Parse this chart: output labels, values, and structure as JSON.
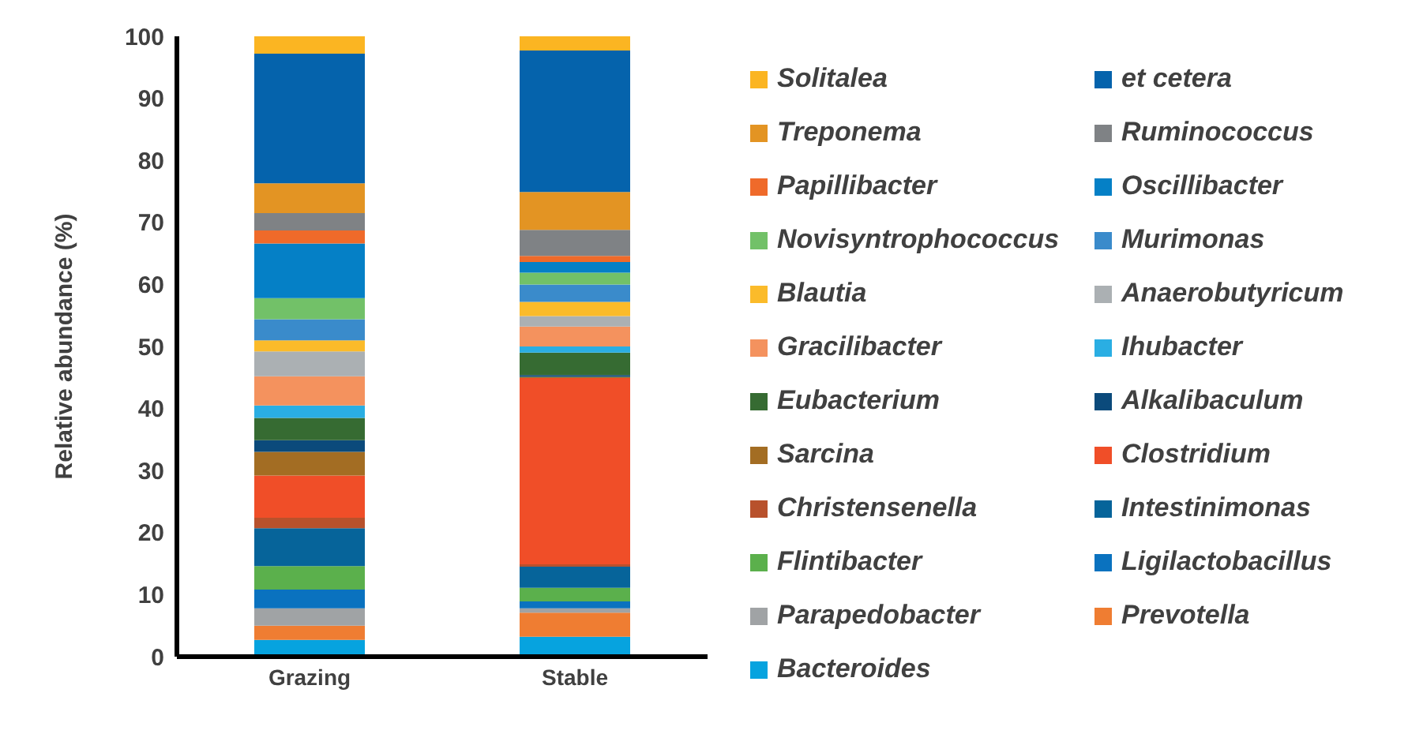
{
  "chart_data": {
    "type": "bar",
    "stacked": true,
    "ylabel": "Relative abundance (%)",
    "categories": [
      "Grazing",
      "Stable"
    ],
    "ylim": [
      0,
      100
    ],
    "yticks": [
      0,
      10,
      20,
      30,
      40,
      50,
      60,
      70,
      80,
      90,
      100
    ],
    "grid": false,
    "legend": "right",
    "series": [
      {
        "name": "Bacteroides",
        "color": "#06a3df",
        "values": [
          2.7,
          3.2
        ]
      },
      {
        "name": "Prevotella",
        "color": "#ef7d32",
        "values": [
          2.3,
          3.9
        ]
      },
      {
        "name": "Parapedobacter",
        "color": "#a0a3a5",
        "values": [
          2.8,
          0.7
        ]
      },
      {
        "name": "Ligilactobacillus",
        "color": "#0a72bf",
        "values": [
          3.0,
          1.1
        ]
      },
      {
        "name": "Flintibacter",
        "color": "#5bb04c",
        "values": [
          3.8,
          2.2
        ]
      },
      {
        "name": "Intestinimonas",
        "color": "#06649a",
        "values": [
          6.1,
          3.4
        ]
      },
      {
        "name": "Christensenella",
        "color": "#b8512c",
        "values": [
          1.7,
          0.4
        ]
      },
      {
        "name": "Clostridium",
        "color": "#f04e28",
        "values": [
          6.8,
          30.0
        ]
      },
      {
        "name": "Sarcina",
        "color": "#a36d23",
        "values": [
          3.8,
          0.2
        ]
      },
      {
        "name": "Alkalibaculum",
        "color": "#0b4a7b",
        "values": [
          1.9,
          0.3
        ]
      },
      {
        "name": "Eubacterium",
        "color": "#366b32",
        "values": [
          3.6,
          3.6
        ]
      },
      {
        "name": "Ihubacter",
        "color": "#2aaee3",
        "values": [
          2.0,
          1.0
        ]
      },
      {
        "name": "Gracilibacter",
        "color": "#f4925e",
        "values": [
          4.7,
          3.2
        ]
      },
      {
        "name": "Anaerobutyricum",
        "color": "#abb0b3",
        "values": [
          4.0,
          1.7
        ]
      },
      {
        "name": "Blautia",
        "color": "#fbbb2a",
        "values": [
          1.8,
          2.3
        ]
      },
      {
        "name": "Murimonas",
        "color": "#3a8bcb",
        "values": [
          3.4,
          2.8
        ]
      },
      {
        "name": "Novisyntrophococcus",
        "color": "#72c168",
        "values": [
          3.4,
          1.9
        ]
      },
      {
        "name": "Oscillibacter",
        "color": "#0580c6",
        "values": [
          8.8,
          1.7
        ]
      },
      {
        "name": "Papillibacter",
        "color": "#ef6a2a",
        "values": [
          2.1,
          1.0
        ]
      },
      {
        "name": "Ruminococcus",
        "color": "#7f8285",
        "values": [
          2.8,
          4.2
        ]
      },
      {
        "name": "Treponema",
        "color": "#e39423",
        "values": [
          4.8,
          6.1
        ]
      },
      {
        "name": "et cetera",
        "color": "#0563ac",
        "values": [
          20.9,
          22.8
        ]
      },
      {
        "name": "Solitalea",
        "color": "#fbb522",
        "values": [
          2.8,
          2.3
        ]
      }
    ]
  }
}
